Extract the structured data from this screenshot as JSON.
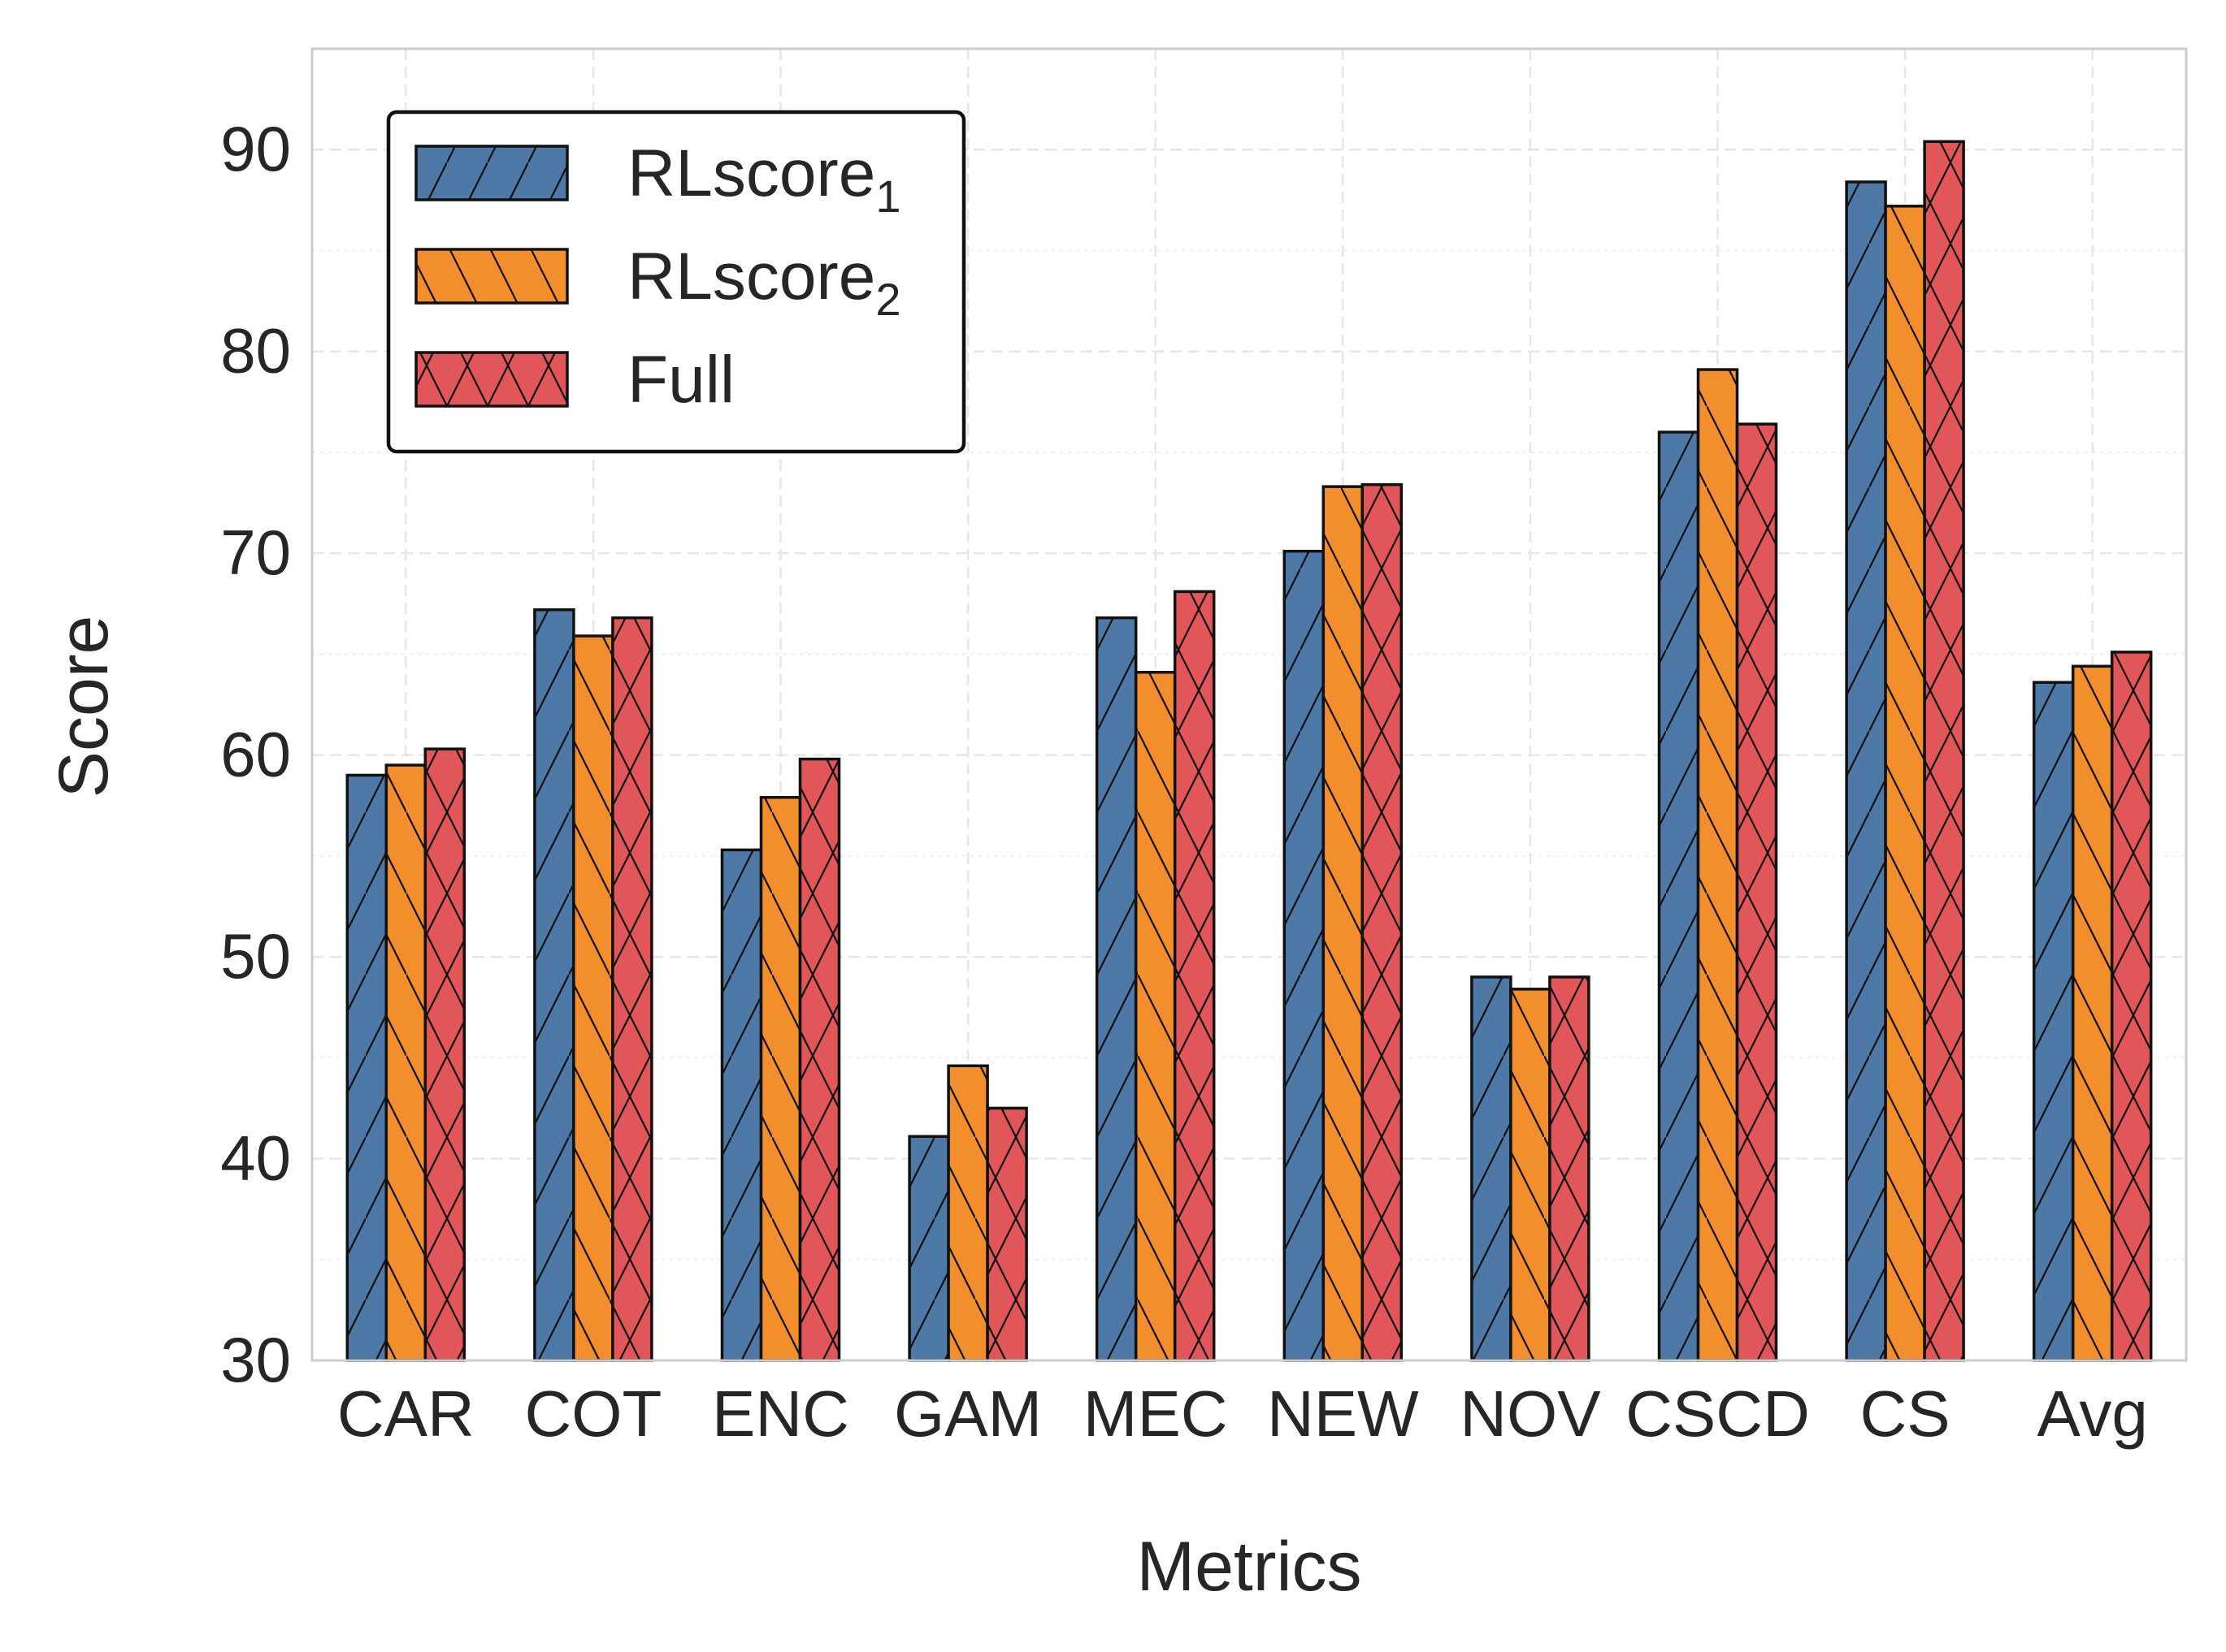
{
  "chart_data": {
    "type": "bar",
    "title": "",
    "xlabel": "Metrics",
    "ylabel": "Score",
    "ylim": [
      30,
      95
    ],
    "yticks": [
      30,
      40,
      50,
      60,
      70,
      80,
      90
    ],
    "grid": true,
    "legend_position": "top-left",
    "categories": [
      "CAR",
      "COT",
      "ENC",
      "GAM",
      "MEC",
      "NEW",
      "NOV",
      "CSCD",
      "CS",
      "Avg"
    ],
    "series": [
      {
        "name": "RLscore",
        "subscript": "1",
        "color": "#4e79a7",
        "hatch": "forward-diagonal",
        "values": [
          59.0,
          67.2,
          55.3,
          41.1,
          66.8,
          70.1,
          49.0,
          76.0,
          88.4,
          63.6
        ]
      },
      {
        "name": "RLscore",
        "subscript": "2",
        "color": "#f28e2b",
        "hatch": "back-diagonal",
        "values": [
          59.5,
          65.9,
          57.9,
          44.6,
          64.1,
          73.3,
          48.4,
          79.1,
          87.2,
          64.4
        ]
      },
      {
        "name": "Full",
        "subscript": "",
        "color": "#e15759",
        "hatch": "cross",
        "values": [
          60.3,
          66.8,
          59.8,
          42.5,
          68.1,
          73.4,
          49.0,
          76.4,
          90.4,
          65.1
        ]
      }
    ]
  }
}
